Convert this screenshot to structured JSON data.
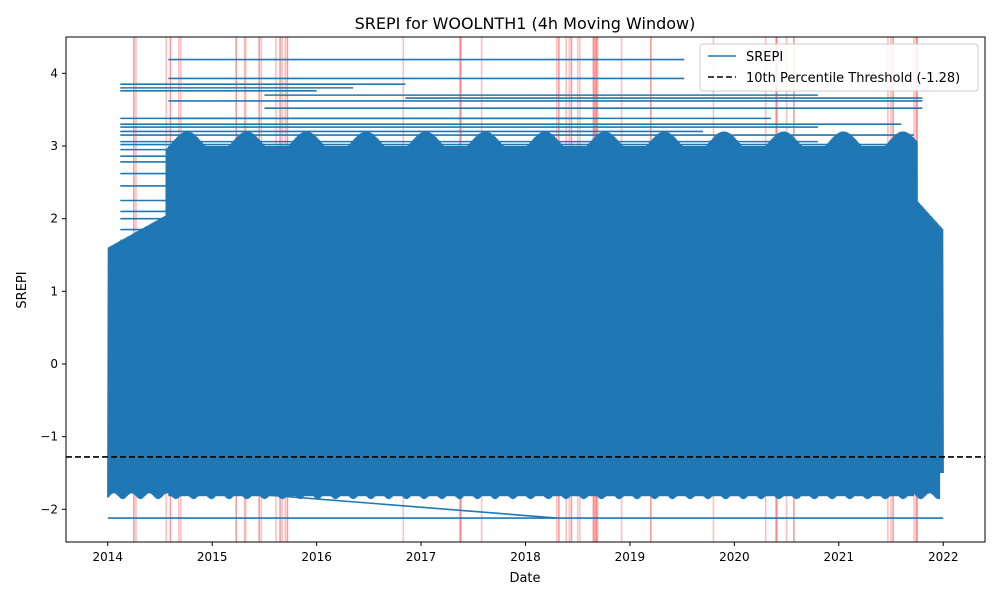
{
  "chart_data": {
    "type": "line",
    "title": "SREPI for WOOLNTH1 (4h Moving Window)",
    "xlabel": "Date",
    "ylabel": "SREPI",
    "xlim": [
      2013.6,
      2022.4
    ],
    "ylim": [
      -2.45,
      4.5
    ],
    "x_ticks": [
      2014,
      2015,
      2016,
      2017,
      2018,
      2019,
      2020,
      2021,
      2022
    ],
    "x_tick_labels": [
      "2014",
      "2015",
      "2016",
      "2017",
      "2018",
      "2019",
      "2020",
      "2021",
      "2022"
    ],
    "y_ticks": [
      -2,
      -1,
      0,
      1,
      2,
      3,
      4
    ],
    "y_tick_labels": [
      "−2",
      "−1",
      "0",
      "1",
      "2",
      "3",
      "4"
    ],
    "grid": false,
    "legend_position": "top-right",
    "series": [
      {
        "name": "SREPI",
        "color": "#1f77b4",
        "x_range": [
          2014.0,
          2022.0
        ],
        "y_range": [
          -2.12,
          4.19
        ],
        "dense_band": [
          -1.82,
          3.2
        ]
      }
    ],
    "threshold": {
      "name": "10th Percentile Threshold (-1.28)",
      "value": -1.28,
      "color": "#000000",
      "style": "dashed"
    },
    "drought_periods": {
      "color": "#ff0000",
      "x": [
        2014.25,
        2014.27,
        2014.56,
        2014.6,
        2014.68,
        2014.7,
        2015.23,
        2015.31,
        2015.32,
        2015.45,
        2015.47,
        2015.61,
        2015.65,
        2015.67,
        2015.7,
        2015.72,
        2016.83,
        2017.37,
        2017.38,
        2017.58,
        2018.3,
        2018.32,
        2018.39,
        2018.42,
        2018.44,
        2018.5,
        2018.52,
        2018.65,
        2018.66,
        2018.67,
        2018.68,
        2018.69,
        2018.92,
        2019.2,
        2019.8,
        2020.3,
        2020.4,
        2020.41,
        2020.5,
        2020.57,
        2021.47,
        2021.5,
        2021.52,
        2021.72,
        2021.74,
        2021.75
      ]
    }
  }
}
